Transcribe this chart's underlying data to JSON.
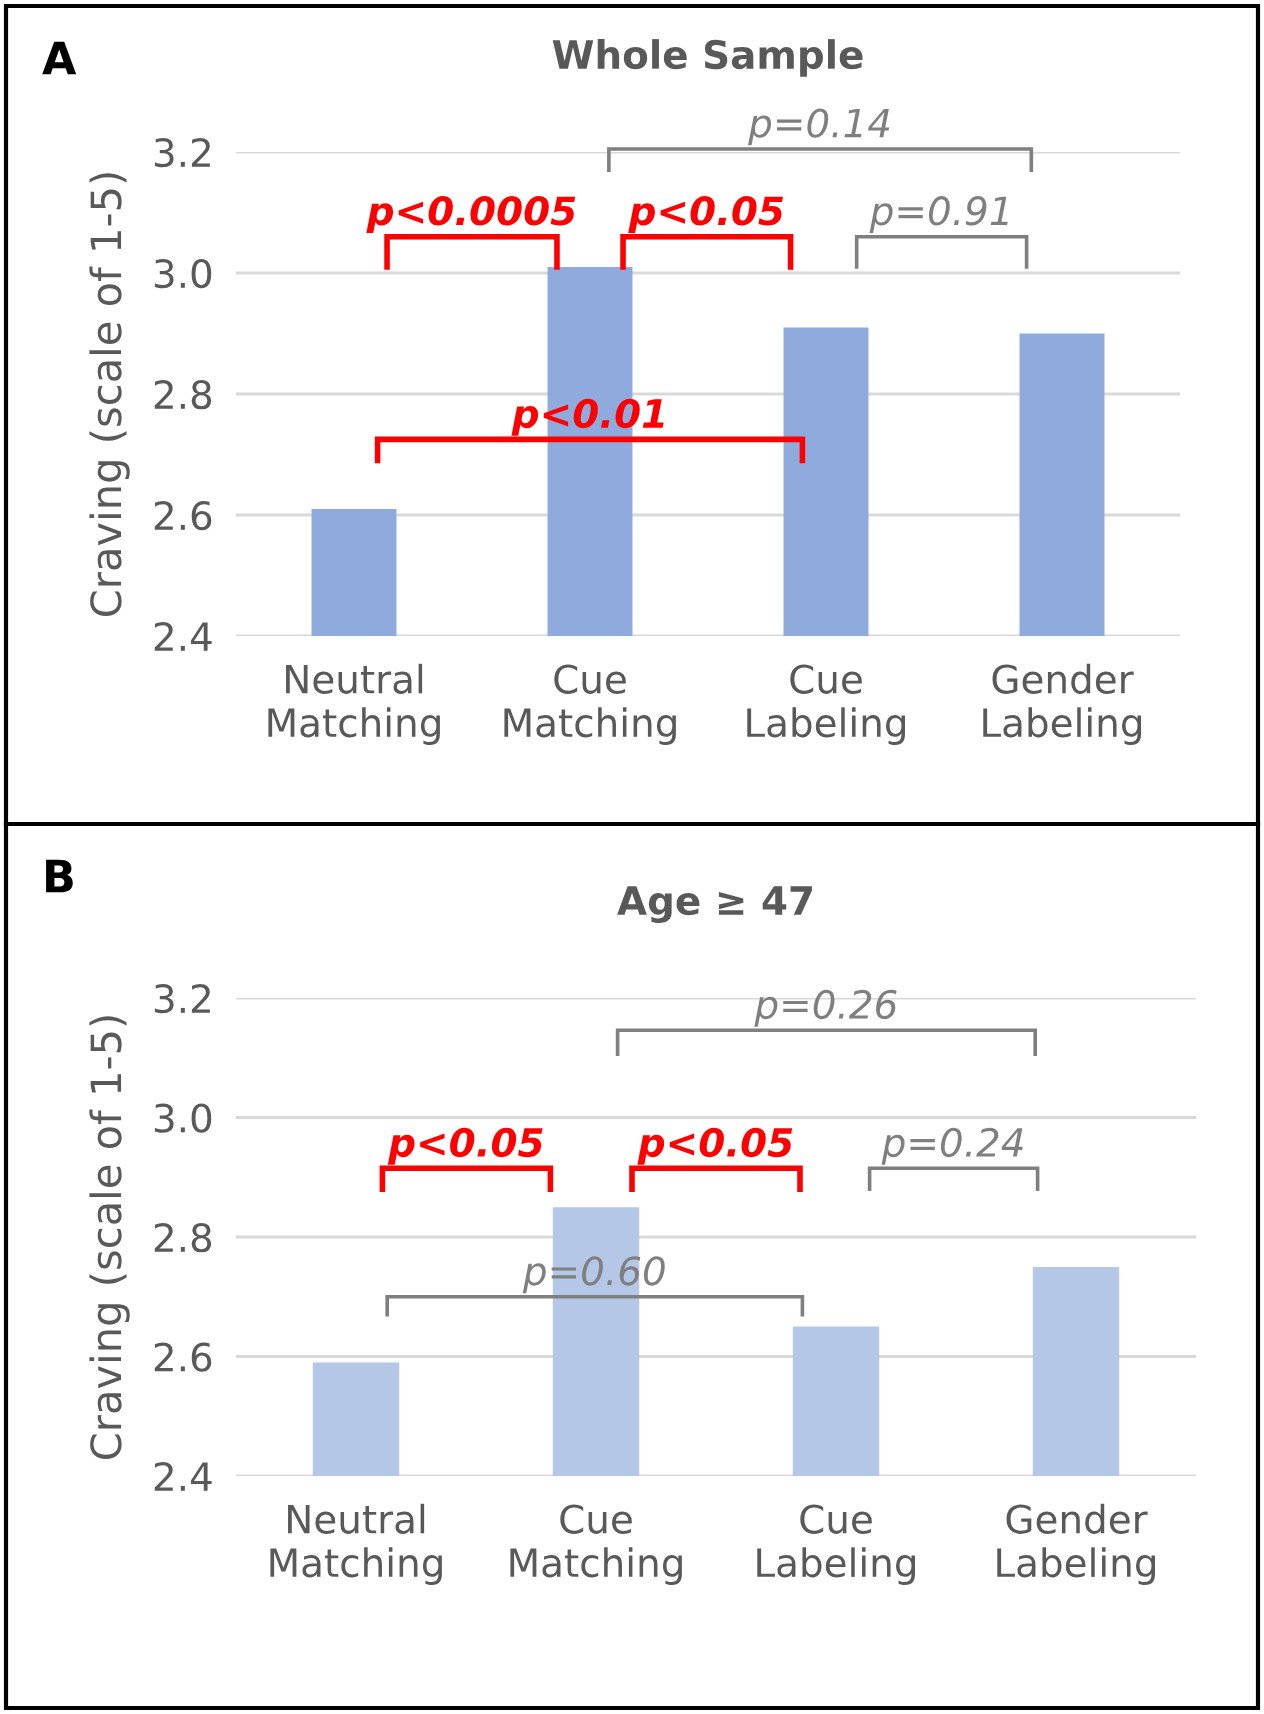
{
  "chart_data": [
    {
      "type": "bar",
      "title": "Whole Sample",
      "ylabel": "Craving (scale of 1-5)",
      "categories": [
        "Neutral\nMatching",
        "Cue\nMatching",
        "Cue\nLabeling",
        "Gender\nLabeling"
      ],
      "values": [
        2.61,
        3.01,
        2.91,
        2.9
      ],
      "color": "#8faadc",
      "ylim": [
        2.4,
        3.2
      ],
      "yticks": [
        2.4,
        2.6,
        2.8,
        {
          "value": 3.0,
          "label": "3.0"
        },
        3.2
      ],
      "grid": "y",
      "annotations": [
        "A",
        "p=0.14",
        "p<0.0005",
        "p<0.05",
        "p=0.91",
        "p<0.01"
      ]
    },
    {
      "type": "bar",
      "title": "Age ≥ 47",
      "ylabel": "Craving (scale of 1-5)",
      "categories": [
        "Neutral\nMatching",
        "Cue\nMatching",
        "Cue\nLabeling",
        "Gender\nLabeling"
      ],
      "values": [
        2.59,
        2.85,
        2.65,
        2.75
      ],
      "color": "#b4c7e7",
      "ylim": [
        2.4,
        3.2
      ],
      "yticks": [
        2.4,
        2.6,
        2.8,
        {
          "value": 3.0,
          "label": "3.0"
        },
        3.2
      ],
      "grid": "y",
      "annotations": [
        "B",
        "p=0.26",
        "p<0.05",
        "p<0.05",
        "p=0.24",
        "p=0.60"
      ]
    }
  ]
}
